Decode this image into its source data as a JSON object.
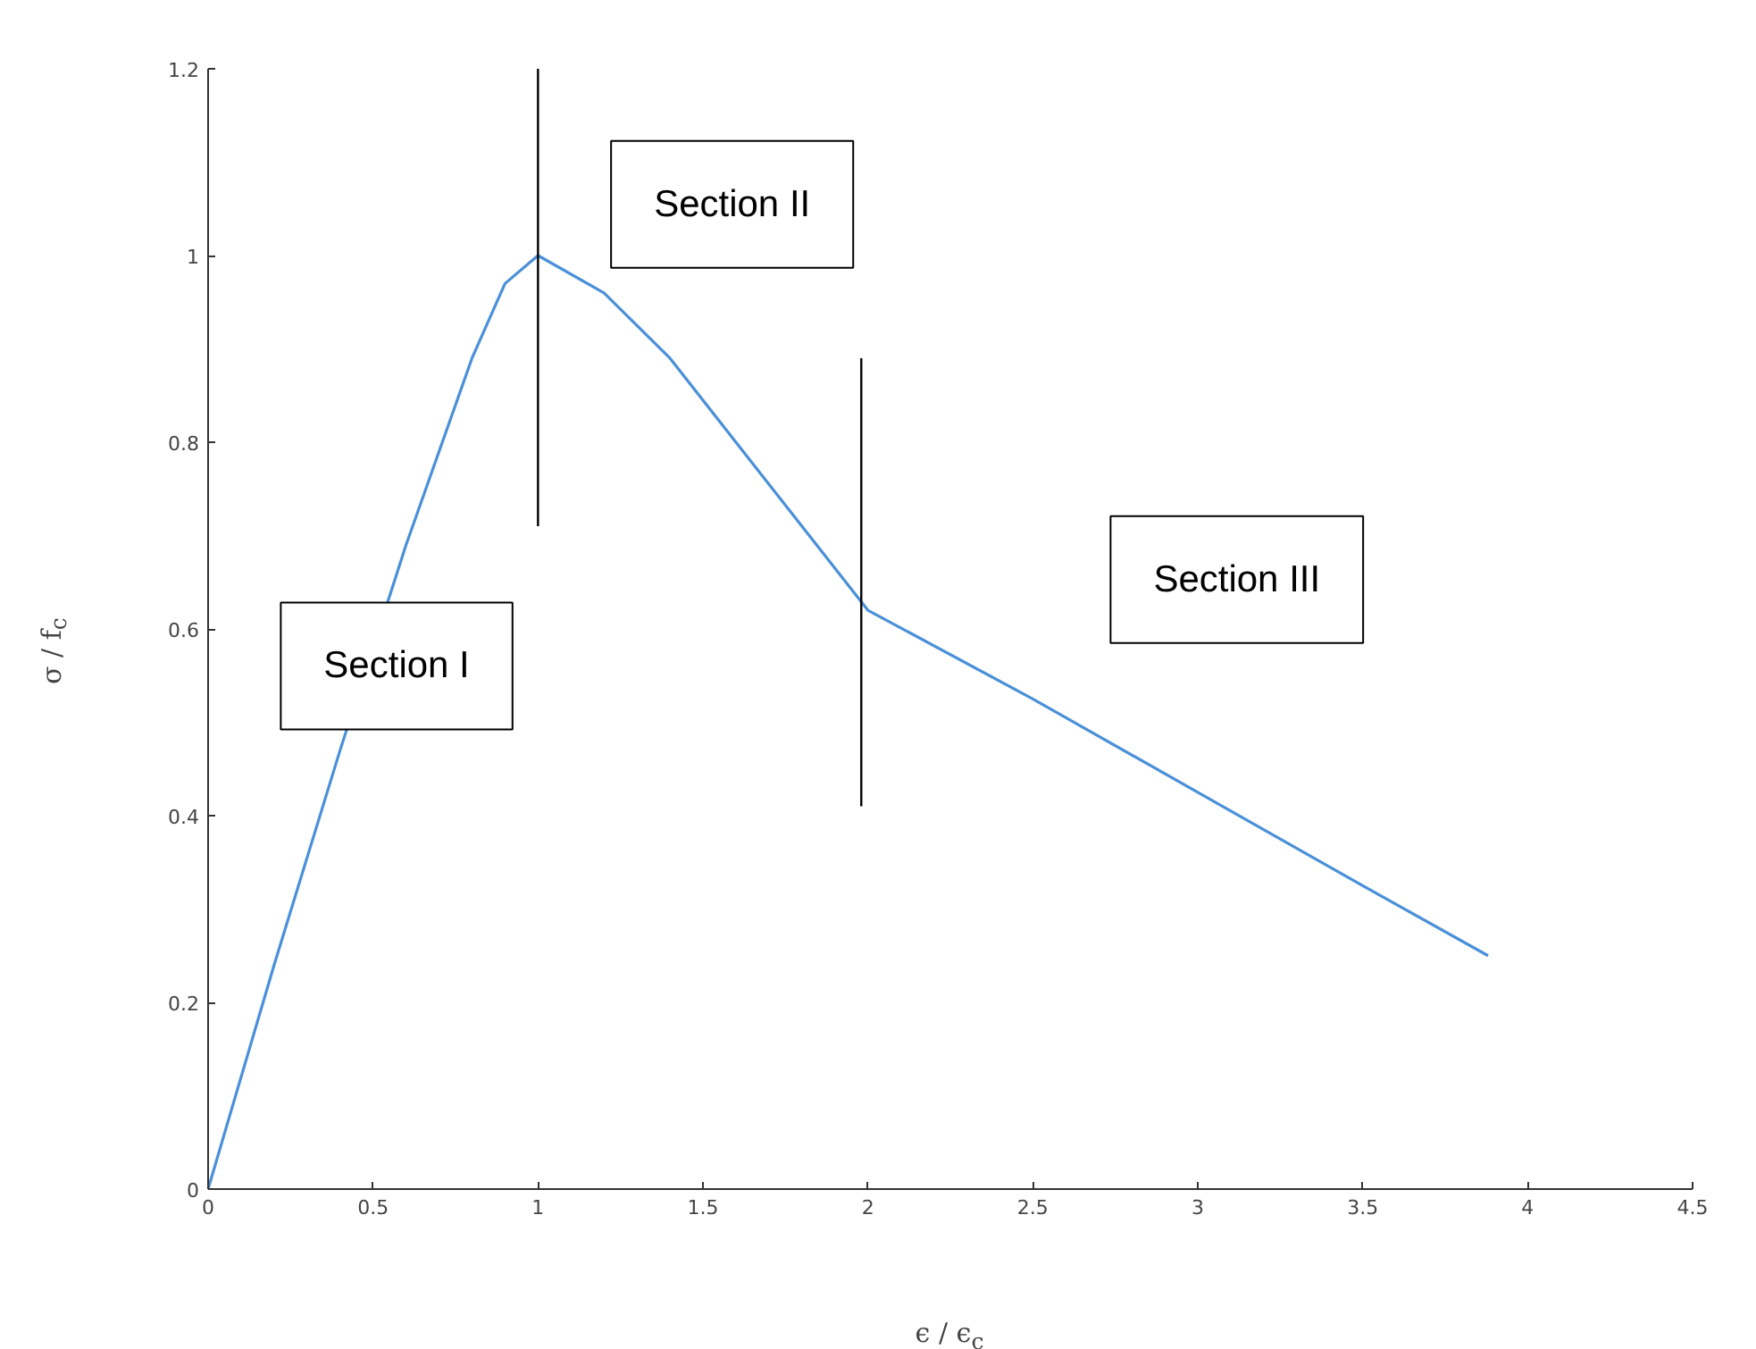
{
  "chart_data": {
    "type": "line",
    "xlabel": "ϵ / ϵ$_{c}$",
    "ylabel": "σ / f$_{c}$",
    "xlim": [
      0,
      4.5
    ],
    "xticks": [
      0,
      0.5,
      1,
      1.5,
      2,
      2.5,
      3,
      3.5,
      4,
      4.5
    ],
    "ylim": [
      0,
      1.2
    ],
    "yticks": [
      0,
      0.2,
      0.4,
      0.6,
      0.8,
      1,
      1.2
    ],
    "grid": false,
    "series": [
      {
        "color": "#4a90d9",
        "x": [
          0,
          0.2,
          0.4,
          0.6,
          0.8,
          0.9,
          1.0,
          1.2,
          1.4,
          1.6,
          1.8,
          2.0,
          2.5,
          3.0,
          3.5,
          3.88
        ],
        "values": [
          0,
          0.24,
          0.47,
          0.69,
          0.89,
          0.97,
          1.0,
          0.96,
          0.89,
          0.8,
          0.71,
          0.62,
          0.525,
          0.425,
          0.325,
          0.25
        ]
      },
      {
        "color": "#000000",
        "x": [
          1,
          1
        ],
        "values": [
          0.71,
          1.2
        ]
      },
      {
        "color": "#000000",
        "x": [
          1.98,
          1.98
        ],
        "values": [
          0.41,
          0.89
        ]
      }
    ],
    "annotations": [
      "Section I",
      "Section II",
      "Section III"
    ]
  }
}
